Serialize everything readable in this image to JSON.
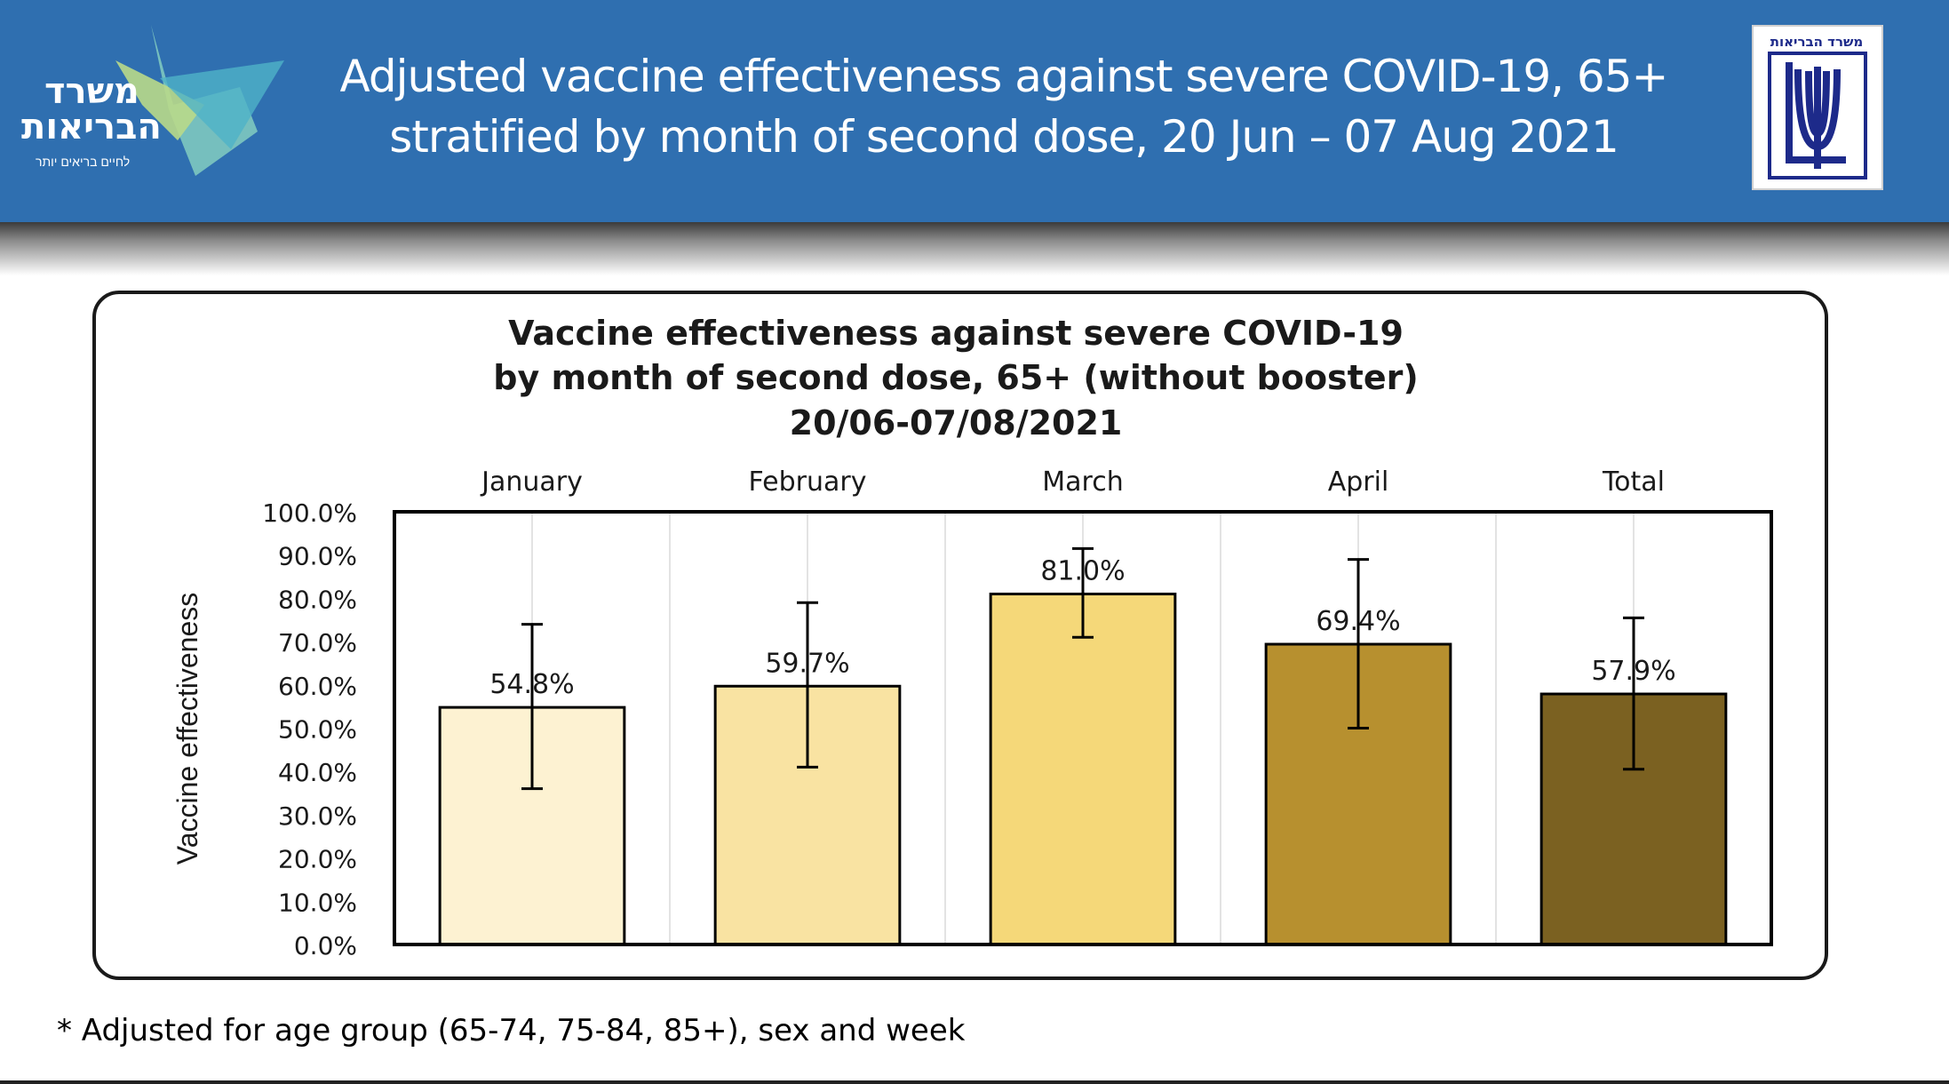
{
  "header": {
    "title_line1": "Adjusted vaccine effectiveness against severe COVID-19, 65+",
    "title_line2": "stratified by month of second dose, 20 Jun – 07 Aug 2021",
    "logo_left_line1": "משרד",
    "logo_left_line2": "הבריאות",
    "logo_left_tagline": "לחיים בריאים יותר",
    "logo_right_text": "משרד הבריאות",
    "color": "#2f6fb0"
  },
  "footnote": "* Adjusted for age group (65-74, 75-84, 85+), sex and week",
  "chart_data": {
    "type": "bar",
    "title": [
      "Vaccine  effectiveness against severe COVID-19",
      "by month of second dose, 65+ (without booster)",
      "20/06-07/08/2021"
    ],
    "ylabel": "Vaccine effectiveness",
    "xlabel": "",
    "categories": [
      "January",
      "February",
      "March",
      "April",
      "Total"
    ],
    "values": [
      54.8,
      59.7,
      81.0,
      69.4,
      57.9
    ],
    "data_labels": [
      "54.8%",
      "59.7%",
      "81.0%",
      "69.4%",
      "57.9%"
    ],
    "error_low": [
      36,
      41,
      71,
      50,
      40.5
    ],
    "error_high": [
      74,
      79,
      91.5,
      89,
      75.5
    ],
    "colors": [
      "#fdf2d2",
      "#f9e3a2",
      "#f5d879",
      "#b7902f",
      "#7b6121"
    ],
    "ylim": [
      0,
      100
    ],
    "yticks": [
      "0.0%",
      "10.0%",
      "20.0%",
      "30.0%",
      "40.0%",
      "50.0%",
      "60.0%",
      "70.0%",
      "80.0%",
      "90.0%",
      "100.0%"
    ],
    "category_labels_position": "top",
    "grid": true
  }
}
